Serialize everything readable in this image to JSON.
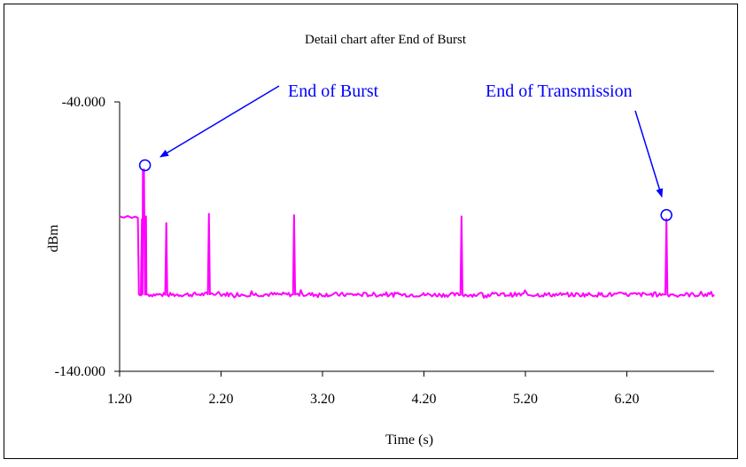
{
  "chart_data": {
    "type": "line",
    "title": "Detail chart after End of Burst",
    "xlabel": "Time (s)",
    "ylabel": "dBm",
    "xlim": [
      1.2,
      7.06
    ],
    "ylim": [
      -140,
      -40
    ],
    "x_ticks": [
      "1.20",
      "2.20",
      "3.20",
      "4.20",
      "5.20",
      "6.20"
    ],
    "y_ticks": [
      "-40.000",
      "-140.000"
    ],
    "grid": false,
    "legend": "none",
    "series_color": "#ff00ff",
    "annotation_color": "#0000ff",
    "baseline_dbm": -111.5,
    "pre_burst_dbm": -83,
    "series": [
      {
        "values": [
          [
            1.2,
            -82.5
          ],
          [
            1.24,
            -83.0
          ],
          [
            1.28,
            -82.3
          ],
          [
            1.32,
            -83.1
          ],
          [
            1.35,
            -82.6
          ],
          [
            1.38,
            -83.0
          ],
          [
            1.39,
            -111.5
          ],
          [
            1.41,
            -111.8
          ],
          [
            1.42,
            -83.5
          ],
          [
            1.425,
            -111.5
          ],
          [
            1.43,
            -65.5
          ],
          [
            1.44,
            -65.0
          ],
          [
            1.45,
            -111.5
          ],
          [
            1.46,
            -82.5
          ],
          [
            1.465,
            -111.5
          ],
          [
            1.65,
            -111.6
          ],
          [
            1.66,
            -85.0
          ],
          [
            1.67,
            -111.6
          ],
          [
            2.07,
            -111.4
          ],
          [
            2.08,
            -81.5
          ],
          [
            2.09,
            -111.4
          ],
          [
            2.91,
            -111.5
          ],
          [
            2.92,
            -82.0
          ],
          [
            2.93,
            -111.5
          ],
          [
            4.56,
            -111.6
          ],
          [
            4.57,
            -82.5
          ],
          [
            4.58,
            -111.6
          ],
          [
            6.58,
            -111.5
          ],
          [
            6.59,
            -83.5
          ],
          [
            6.6,
            -111.5
          ],
          [
            7.06,
            -111.6
          ]
        ]
      }
    ],
    "annotations": [
      {
        "text": "End of Burst",
        "x": 1.45,
        "y": -63.5
      },
      {
        "text": "End of Transmission",
        "x": 6.59,
        "y": -82.0
      }
    ]
  }
}
